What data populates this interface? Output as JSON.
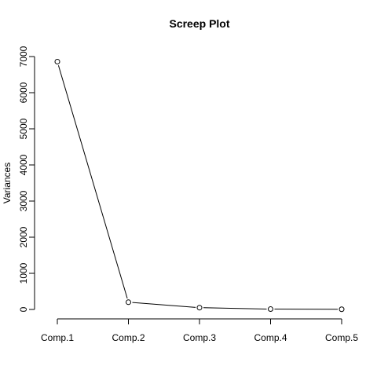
{
  "chart_data": {
    "type": "line",
    "title": "Screep Plot",
    "xlabel": "",
    "ylabel": "Variances",
    "categories": [
      "Comp.1",
      "Comp.2",
      "Comp.3",
      "Comp.4",
      "Comp.5"
    ],
    "values": [
      6860,
      200,
      50,
      10,
      5
    ],
    "ylim": [
      0,
      7000
    ],
    "yticks": [
      "0",
      "1000",
      "2000",
      "3000",
      "4000",
      "5000",
      "6000",
      "7000"
    ],
    "grid": false,
    "legend": "none",
    "markers": "open-circle",
    "colors": {
      "line": "#000000",
      "marker_fill": "#ffffff",
      "text": "#000000"
    }
  }
}
